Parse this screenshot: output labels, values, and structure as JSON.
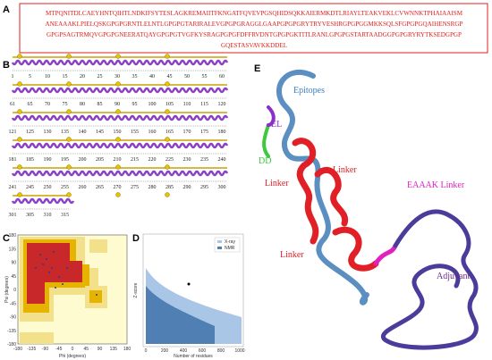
{
  "panels": {
    "a": {
      "label": "A",
      "sequence": [
        "MTPQNITDLCAEYHNTQIHTLNDKIFSYTESLAGKREMAIITFKNGATFQVEVPGSQHIDSQKKAIERMKDTLRIAYLTEAKVEKLCVWNNKTPHAIAAISM",
        "ANEAAAKLPIELQSKGPGPGRNTLELNTLGPGPGTARIRALEVGPGPGRAGGLGAAPGPGPGRYTRYVESHRGPGPGGMKKSQLSFGPGPGQAIHENSRGP",
        "GPGPSAGTRMQVGPGPGNEERATQAYGPGPGTVGFKYSRAGPGPGFDFFRVDNTGPGPGKTITLRANLGPGPGSTARTAADGGPGPGRYRYTKSEDGPGP",
        "GQESTASVAVKKDDEL"
      ]
    },
    "b": {
      "label": "B",
      "rows": [
        [
          1,
          5,
          10,
          15,
          20,
          25,
          30,
          35,
          40,
          45,
          50,
          55,
          60
        ],
        [
          61,
          65,
          70,
          75,
          80,
          85,
          90,
          95,
          100,
          105,
          110,
          115,
          120
        ],
        [
          121,
          125,
          130,
          135,
          140,
          145,
          150,
          155,
          160,
          165,
          170,
          175,
          180
        ],
        [
          181,
          185,
          190,
          195,
          200,
          205,
          210,
          215,
          220,
          225,
          230,
          235,
          240
        ],
        [
          241,
          245,
          250,
          255,
          260,
          265,
          270,
          275,
          280,
          285,
          290,
          295,
          300
        ],
        [
          301,
          305,
          310,
          315
        ]
      ]
    },
    "c": {
      "label": "C",
      "x_label": "Phi (degrees)",
      "y_label": "Psi (degrees)",
      "ticks": [
        -180,
        -135,
        -90,
        -45,
        0,
        45,
        90,
        135,
        180
      ]
    },
    "d": {
      "label": "D",
      "x_label": "Number of residues",
      "y_label": "Z-score",
      "legend": [
        "X-ray",
        "NMR"
      ],
      "xticks": [
        0,
        200,
        400,
        600,
        800,
        1000
      ]
    },
    "e": {
      "label": "E",
      "annotations": [
        "Epitopes",
        "EL",
        "DD",
        "Linker",
        "Linker",
        "Linker",
        "EAAAK Linker",
        "Adjuvant"
      ]
    }
  }
}
